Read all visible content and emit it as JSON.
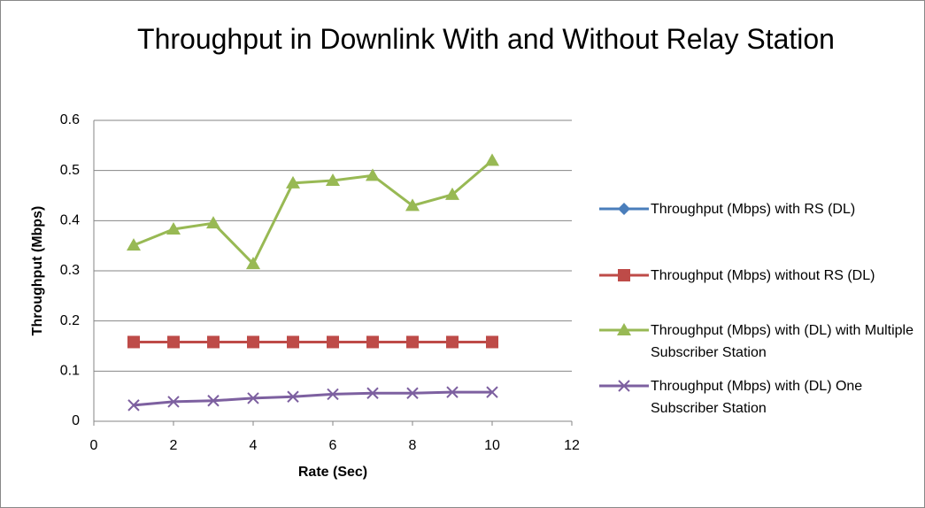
{
  "chart_data": {
    "type": "line",
    "title": "Throughput in Downlink With and Without Relay Station",
    "x_label": "Rate (Sec)",
    "y_label": "Throughput  (Mbps)",
    "x": [
      1,
      2,
      3,
      4,
      5,
      6,
      7,
      8,
      9,
      10
    ],
    "series": [
      {
        "name": "Throughput (Mbps) with RS (DL)",
        "color": "#4a7ebb",
        "marker": "diamond",
        "values": [
          0.158,
          0.158,
          0.158,
          0.158,
          0.158,
          0.158,
          0.158,
          0.158,
          0.158,
          0.158
        ]
      },
      {
        "name": "Throughput (Mbps) without RS (DL)",
        "color": "#be4b48",
        "marker": "square",
        "values": [
          0.158,
          0.158,
          0.158,
          0.158,
          0.158,
          0.158,
          0.158,
          0.158,
          0.158,
          0.158
        ]
      },
      {
        "name": "Throughput (Mbps) with (DL) with Multiple Subscriber Station",
        "color": "#98b954",
        "marker": "triangle",
        "values": [
          0.351,
          0.383,
          0.395,
          0.314,
          0.475,
          0.48,
          0.49,
          0.43,
          0.452,
          0.52
        ]
      },
      {
        "name": "Throughput (Mbps) with (DL) One Subscriber Station",
        "color": "#7d60a0",
        "marker": "x",
        "values": [
          0.032,
          0.039,
          0.041,
          0.046,
          0.049,
          0.054,
          0.056,
          0.056,
          0.058,
          0.058
        ]
      }
    ],
    "xlim": [
      0,
      12
    ],
    "xticks": [
      0,
      2,
      4,
      6,
      8,
      10,
      12
    ],
    "ylim": [
      0,
      0.6
    ],
    "yticks": [
      0,
      0.1,
      0.2,
      0.3,
      0.4,
      0.5,
      0.6
    ],
    "grid": true,
    "legend": "right"
  }
}
